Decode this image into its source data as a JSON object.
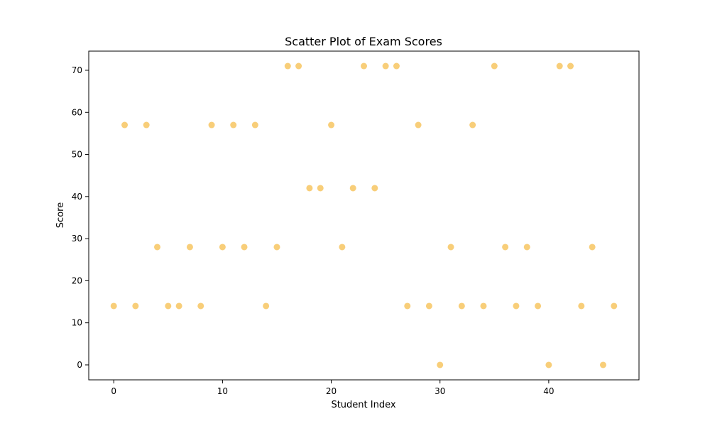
{
  "chart_data": {
    "type": "scatter",
    "title": "Scatter Plot of Exam Scores",
    "xlabel": "Student Index",
    "ylabel": "Score",
    "xlim": [
      -2.3,
      48.3
    ],
    "ylim": [
      -3.55,
      74.55
    ],
    "x_ticks": [
      0,
      10,
      20,
      30,
      40
    ],
    "y_ticks": [
      0,
      10,
      20,
      30,
      40,
      50,
      60,
      70
    ],
    "grid": false,
    "marker_color": "#f5b940",
    "marker_opacity": 0.7,
    "x": [
      0,
      1,
      2,
      3,
      4,
      5,
      6,
      7,
      8,
      9,
      10,
      11,
      12,
      13,
      14,
      15,
      16,
      17,
      18,
      19,
      20,
      21,
      22,
      23,
      24,
      25,
      26,
      27,
      28,
      29,
      30,
      31,
      32,
      33,
      34,
      35,
      36,
      37,
      38,
      39,
      40,
      41,
      42,
      43,
      44,
      45,
      46
    ],
    "y": [
      14,
      57,
      14,
      57,
      28,
      14,
      14,
      28,
      14,
      57,
      28,
      57,
      28,
      57,
      14,
      28,
      71,
      71,
      42,
      42,
      57,
      28,
      42,
      71,
      42,
      71,
      71,
      14,
      57,
      14,
      0,
      28,
      14,
      57,
      14,
      71,
      28,
      14,
      28,
      14,
      0,
      71,
      71,
      14,
      28,
      0,
      14
    ]
  }
}
